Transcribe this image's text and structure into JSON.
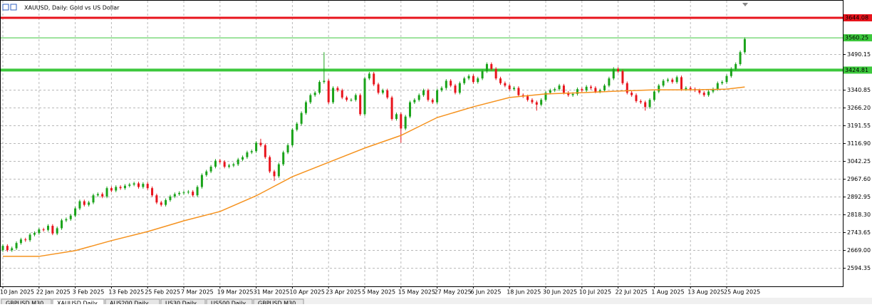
{
  "header": {
    "title": "XAUUSD, Daily: Gold vs US Dollar"
  },
  "chart_data": {
    "type": "candlestick",
    "categories": [
      "10 Jan 2025",
      null,
      null,
      null,
      null,
      null,
      null,
      null,
      "22 Jan 2025",
      null,
      null,
      null,
      null,
      null,
      null,
      null,
      "3 Feb 2025",
      null,
      null,
      null,
      null,
      null,
      null,
      null,
      "13 Feb 2025",
      null,
      null,
      null,
      null,
      null,
      null,
      null,
      "25 Feb 2025",
      null,
      null,
      null,
      null,
      null,
      null,
      null,
      "7 Mar 2025",
      null,
      null,
      null,
      null,
      null,
      null,
      null,
      "19 Mar 2025",
      null,
      null,
      null,
      null,
      null,
      null,
      null,
      "31 Mar 2025",
      null,
      null,
      null,
      null,
      null,
      null,
      null,
      "10 Apr 2025",
      null,
      null,
      null,
      null,
      null,
      null,
      null,
      "23 Apr 2025",
      null,
      null,
      null,
      null,
      null,
      null,
      null,
      "5 May 2025",
      null,
      null,
      null,
      null,
      null,
      null,
      null,
      "15 May 2025",
      null,
      null,
      null,
      null,
      null,
      null,
      null,
      "27 May 2025",
      null,
      null,
      null,
      null,
      null,
      null,
      null,
      "6 Jun 2025",
      null,
      null,
      null,
      null,
      null,
      null,
      null,
      "18 Jun 2025",
      null,
      null,
      null,
      null,
      null,
      null,
      null,
      "30 Jun 2025",
      null,
      null,
      null,
      null,
      null,
      null,
      null,
      "10 Jul 2025",
      null,
      null,
      null,
      null,
      null,
      null,
      null,
      "22 Jul 2025",
      null,
      null,
      null,
      null,
      null,
      null,
      null,
      "1 Aug 2025",
      null,
      null,
      null,
      null,
      null,
      null,
      null,
      "13 Aug 2025",
      null,
      null,
      null,
      null,
      null,
      null,
      null,
      "25 Aug 2025",
      null,
      null,
      null,
      null
    ],
    "candles": [
      [
        2670,
        2695,
        2663,
        2688
      ],
      [
        2688,
        2695,
        2663,
        2670
      ],
      [
        2670,
        2685,
        2663,
        2678
      ],
      [
        2678,
        2707,
        2671,
        2700
      ],
      [
        2700,
        2722,
        2693,
        2715
      ],
      [
        2715,
        2722,
        2705,
        2712
      ],
      [
        2712,
        2742,
        2705,
        2735
      ],
      [
        2735,
        2749,
        2728,
        2742
      ],
      [
        2742,
        2764,
        2735,
        2757
      ],
      [
        2757,
        2764,
        2748,
        2755
      ],
      [
        2755,
        2779,
        2748,
        2772
      ],
      [
        2772,
        2779,
        2733,
        2740
      ],
      [
        2740,
        2769,
        2733,
        2762
      ],
      [
        2762,
        2802,
        2755,
        2795
      ],
      [
        2795,
        2807,
        2788,
        2800
      ],
      [
        2800,
        2822,
        2793,
        2815
      ],
      [
        2815,
        2852,
        2808,
        2845
      ],
      [
        2845,
        2882,
        2838,
        2875
      ],
      [
        2875,
        2882,
        2853,
        2860
      ],
      [
        2860,
        2877,
        2853,
        2870
      ],
      [
        2870,
        2907,
        2863,
        2900
      ],
      [
        2900,
        2912,
        2893,
        2905
      ],
      [
        2905,
        2912,
        2888,
        2895
      ],
      [
        2895,
        2937,
        2888,
        2930
      ],
      [
        2930,
        2937,
        2913,
        2920
      ],
      [
        2920,
        2942,
        2913,
        2935
      ],
      [
        2935,
        2942,
        2923,
        2930
      ],
      [
        2930,
        2947,
        2923,
        2940
      ],
      [
        2940,
        2952,
        2933,
        2945
      ],
      [
        2945,
        2957,
        2938,
        2950
      ],
      [
        2950,
        2957,
        2928,
        2935
      ],
      [
        2935,
        2955,
        2928,
        2948
      ],
      [
        2948,
        2955,
        2923,
        2930
      ],
      [
        2930,
        2937,
        2893,
        2900
      ],
      [
        2900,
        2907,
        2863,
        2870
      ],
      [
        2870,
        2877,
        2853,
        2860
      ],
      [
        2860,
        2887,
        2853,
        2880
      ],
      [
        2880,
        2902,
        2873,
        2895
      ],
      [
        2895,
        2912,
        2888,
        2905
      ],
      [
        2905,
        2917,
        2898,
        2910
      ],
      [
        2910,
        2919,
        2903,
        2912
      ],
      [
        2912,
        2922,
        2905,
        2915
      ],
      [
        2915,
        2922,
        2893,
        2900
      ],
      [
        2900,
        2942,
        2893,
        2935
      ],
      [
        2935,
        2992,
        2928,
        2985
      ],
      [
        2985,
        3007,
        2978,
        3000
      ],
      [
        3000,
        3027,
        2993,
        3020
      ],
      [
        3020,
        3052,
        3013,
        3045
      ],
      [
        3045,
        3052,
        3033,
        3040
      ],
      [
        3040,
        3047,
        3013,
        3020
      ],
      [
        3020,
        3032,
        3013,
        3025
      ],
      [
        3025,
        3037,
        3018,
        3030
      ],
      [
        3030,
        3057,
        3023,
        3050
      ],
      [
        3050,
        3067,
        3043,
        3060
      ],
      [
        3060,
        3087,
        3053,
        3080
      ],
      [
        3080,
        3092,
        3073,
        3085
      ],
      [
        3085,
        3127,
        3078,
        3120
      ],
      [
        3120,
        3137,
        3103,
        3110
      ],
      [
        3110,
        3117,
        3053,
        3060
      ],
      [
        3060,
        3067,
        2993,
        3000
      ],
      [
        3000,
        3007,
        2960,
        2980
      ],
      [
        2980,
        3037,
        2973,
        3030
      ],
      [
        3030,
        3087,
        3023,
        3080
      ],
      [
        3080,
        3117,
        3073,
        3110
      ],
      [
        3110,
        3182,
        3103,
        3175
      ],
      [
        3175,
        3207,
        3168,
        3200
      ],
      [
        3200,
        3252,
        3193,
        3245
      ],
      [
        3245,
        3297,
        3238,
        3290
      ],
      [
        3290,
        3327,
        3283,
        3320
      ],
      [
        3320,
        3337,
        3313,
        3330
      ],
      [
        3330,
        3382,
        3323,
        3375
      ],
      [
        3375,
        3500,
        3368,
        3380
      ],
      [
        3380,
        3387,
        3283,
        3290
      ],
      [
        3290,
        3357,
        3283,
        3350
      ],
      [
        3350,
        3357,
        3333,
        3340
      ],
      [
        3340,
        3347,
        3303,
        3310
      ],
      [
        3310,
        3317,
        3293,
        3300
      ],
      [
        3300,
        3307,
        3293,
        3300
      ],
      [
        3300,
        3327,
        3293,
        3320
      ],
      [
        3320,
        3327,
        3233,
        3240
      ],
      [
        3240,
        3397,
        3233,
        3390
      ],
      [
        3390,
        3417,
        3383,
        3410
      ],
      [
        3410,
        3417,
        3358,
        3365
      ],
      [
        3365,
        3372,
        3323,
        3330
      ],
      [
        3330,
        3347,
        3323,
        3340
      ],
      [
        3340,
        3347,
        3303,
        3310
      ],
      [
        3310,
        3317,
        3213,
        3220
      ],
      [
        3220,
        3247,
        3213,
        3240
      ],
      [
        3240,
        3247,
        3120,
        3180
      ],
      [
        3180,
        3237,
        3173,
        3230
      ],
      [
        3230,
        3297,
        3223,
        3290
      ],
      [
        3290,
        3307,
        3283,
        3300
      ],
      [
        3300,
        3327,
        3293,
        3320
      ],
      [
        3320,
        3347,
        3313,
        3340
      ],
      [
        3340,
        3347,
        3293,
        3300
      ],
      [
        3300,
        3307,
        3283,
        3290
      ],
      [
        3290,
        3347,
        3283,
        3340
      ],
      [
        3340,
        3357,
        3333,
        3350
      ],
      [
        3350,
        3387,
        3343,
        3380
      ],
      [
        3380,
        3387,
        3353,
        3360
      ],
      [
        3360,
        3367,
        3323,
        3330
      ],
      [
        3330,
        3377,
        3323,
        3370
      ],
      [
        3370,
        3397,
        3363,
        3390
      ],
      [
        3390,
        3407,
        3383,
        3400
      ],
      [
        3400,
        3407,
        3368,
        3375
      ],
      [
        3375,
        3397,
        3368,
        3390
      ],
      [
        3390,
        3427,
        3383,
        3420
      ],
      [
        3420,
        3457,
        3413,
        3450
      ],
      [
        3450,
        3457,
        3423,
        3430
      ],
      [
        3430,
        3437,
        3383,
        3390
      ],
      [
        3390,
        3397,
        3363,
        3370
      ],
      [
        3370,
        3377,
        3353,
        3360
      ],
      [
        3360,
        3367,
        3338,
        3345
      ],
      [
        3345,
        3357,
        3338,
        3350
      ],
      [
        3350,
        3357,
        3313,
        3320
      ],
      [
        3320,
        3327,
        3308,
        3315
      ],
      [
        3315,
        3322,
        3293,
        3300
      ],
      [
        3300,
        3307,
        3283,
        3290
      ],
      [
        3290,
        3297,
        3255,
        3280
      ],
      [
        3280,
        3307,
        3273,
        3300
      ],
      [
        3300,
        3337,
        3293,
        3330
      ],
      [
        3330,
        3347,
        3323,
        3340
      ],
      [
        3340,
        3352,
        3333,
        3345
      ],
      [
        3345,
        3367,
        3338,
        3360
      ],
      [
        3360,
        3367,
        3323,
        3330
      ],
      [
        3330,
        3337,
        3313,
        3320
      ],
      [
        3320,
        3332,
        3313,
        3325
      ],
      [
        3325,
        3352,
        3318,
        3345
      ],
      [
        3345,
        3352,
        3333,
        3340
      ],
      [
        3340,
        3362,
        3333,
        3355
      ],
      [
        3355,
        3362,
        3343,
        3350
      ],
      [
        3350,
        3357,
        3328,
        3335
      ],
      [
        3335,
        3347,
        3328,
        3340
      ],
      [
        3340,
        3367,
        3333,
        3360
      ],
      [
        3360,
        3397,
        3353,
        3390
      ],
      [
        3390,
        3437,
        3383,
        3430
      ],
      [
        3430,
        3437,
        3413,
        3420
      ],
      [
        3420,
        3427,
        3363,
        3370
      ],
      [
        3370,
        3377,
        3323,
        3330
      ],
      [
        3330,
        3337,
        3313,
        3320
      ],
      [
        3320,
        3327,
        3288,
        3295
      ],
      [
        3295,
        3302,
        3283,
        3290
      ],
      [
        3290,
        3297,
        3255,
        3270
      ],
      [
        3270,
        3307,
        3263,
        3300
      ],
      [
        3300,
        3342,
        3293,
        3335
      ],
      [
        3335,
        3367,
        3328,
        3360
      ],
      [
        3360,
        3387,
        3353,
        3380
      ],
      [
        3380,
        3392,
        3373,
        3385
      ],
      [
        3385,
        3392,
        3368,
        3375
      ],
      [
        3375,
        3402,
        3368,
        3395
      ],
      [
        3395,
        3402,
        3338,
        3345
      ],
      [
        3345,
        3357,
        3338,
        3350
      ],
      [
        3350,
        3357,
        3338,
        3345
      ],
      [
        3345,
        3352,
        3333,
        3340
      ],
      [
        3340,
        3347,
        3323,
        3330
      ],
      [
        3330,
        3337,
        3313,
        3320
      ],
      [
        3320,
        3342,
        3313,
        3335
      ],
      [
        3335,
        3352,
        3328,
        3345
      ],
      [
        3345,
        3377,
        3338,
        3370
      ],
      [
        3370,
        3382,
        3363,
        3375
      ],
      [
        3375,
        3407,
        3368,
        3400
      ],
      [
        3400,
        3437,
        3393,
        3430
      ],
      [
        3430,
        3457,
        3423,
        3450
      ],
      [
        3450,
        3507,
        3443,
        3500
      ],
      [
        3500,
        3562,
        3493,
        3555
      ]
    ],
    "up_color": "#1aa31a",
    "down_color": "#e8141c",
    "ma": {
      "color": "#f5921e",
      "x": [
        0,
        8,
        16,
        24,
        32,
        40,
        48,
        56,
        64,
        72,
        80,
        88,
        96,
        104,
        112,
        120,
        128,
        136,
        144,
        152,
        160,
        164
      ],
      "values": [
        2644,
        2644,
        2668,
        2710,
        2748,
        2793,
        2832,
        2898,
        2978,
        3038,
        3098,
        3151,
        3226,
        3271,
        3310,
        3325,
        3330,
        3337,
        3342,
        3342,
        3345,
        3354
      ]
    },
    "levels": [
      {
        "value": 3644.08,
        "color": "#e8141c",
        "width": 3
      },
      {
        "value": 3560.25,
        "color": "#3cc83c",
        "width": 1
      },
      {
        "value": 3424.81,
        "color": "#3cc83c",
        "width": 4
      }
    ],
    "ylim": [
      2518.4,
      3676.9
    ],
    "yticks": [
      2594.35,
      {
        "value": 2669,
        "label": "2669.00"
      },
      2743.65,
      {
        "value": 2818.3,
        "label": "2818.30"
      },
      2892.95,
      {
        "value": 2967.6,
        "label": "2967.60"
      },
      3042.25,
      {
        "value": 3116.9,
        "label": "3116.90"
      },
      3191.55,
      {
        "value": 3266.2,
        "label": "3266.20"
      },
      3340.85,
      3490.15
    ],
    "grid": true
  },
  "tabs": [
    "GBPUSD,M30",
    "XAUUSD,Daily",
    "AUS200,Daily",
    "US30,Daily",
    "US500,Daily",
    "GBPUSD,M30"
  ]
}
